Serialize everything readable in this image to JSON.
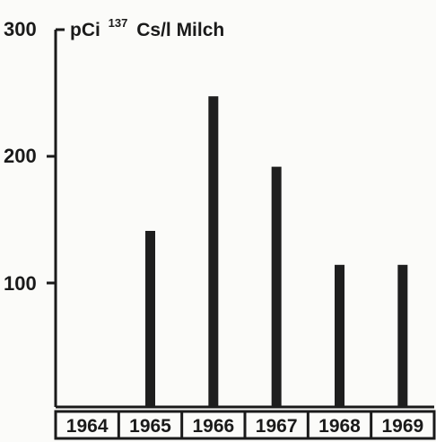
{
  "chart_data": {
    "type": "bar",
    "title": "",
    "ylabel_parts": {
      "prefix": "pCi",
      "superscript": "137",
      "suffix": "Cs/l Milch"
    },
    "ylabel": "pCi 137Cs/l Milch",
    "xlabel": "",
    "categories": [
      "1964",
      "1965",
      "1966",
      "1967",
      "1968",
      "1969"
    ],
    "values": [
      0,
      140,
      247,
      191,
      113,
      113
    ],
    "ylim": [
      0,
      300
    ],
    "yticks": [
      "100",
      "200",
      "300"
    ],
    "grid": false,
    "legend": "none",
    "bar_color": "#1e1e1e"
  }
}
